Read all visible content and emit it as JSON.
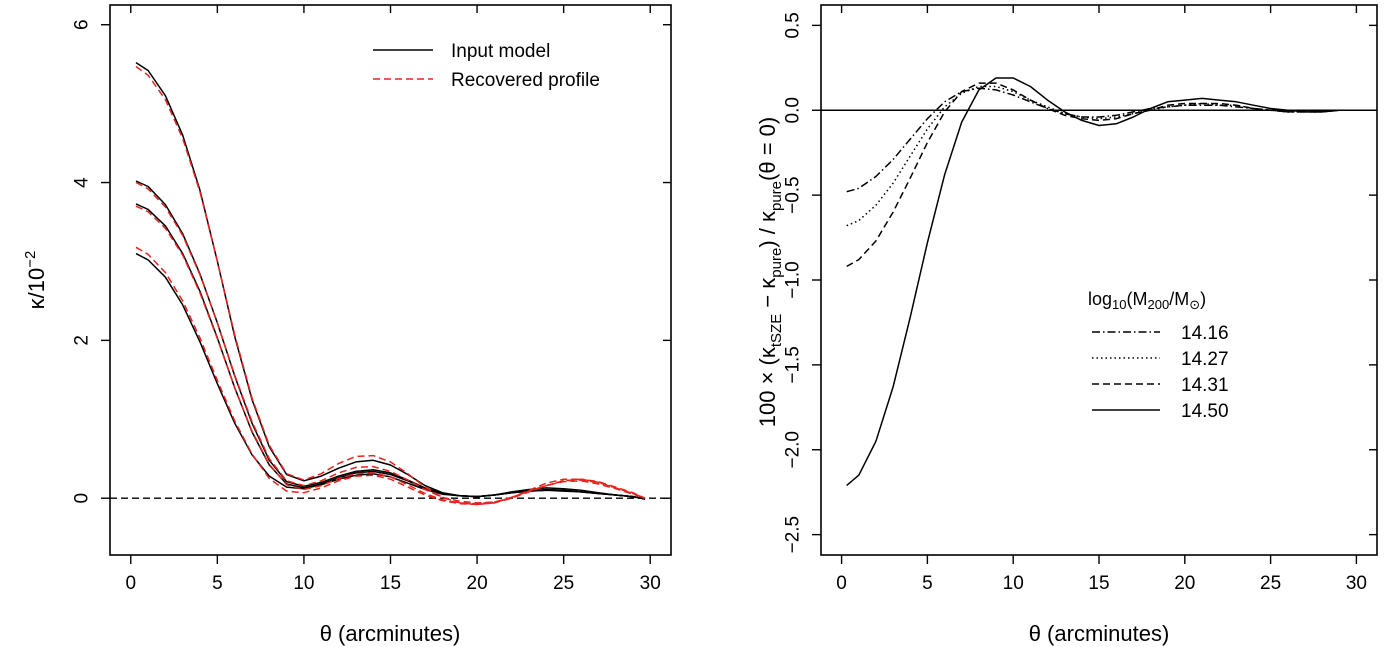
{
  "chart_data": [
    {
      "type": "line",
      "xlabel": "θ (arcminutes)",
      "ylabel": {
        "base": "κ/10",
        "sup": "−2"
      },
      "xlim": [
        -1.2,
        31.2
      ],
      "ylim": [
        -0.72,
        6.25
      ],
      "xticks": [
        0,
        5,
        10,
        15,
        20,
        25,
        30
      ],
      "xtick_labels": [
        "0",
        "5",
        "10",
        "15",
        "20",
        "25",
        "30"
      ],
      "yticks": [
        0,
        2,
        4,
        6
      ],
      "ytick_labels": [
        "0",
        "2",
        "4",
        "6"
      ],
      "grid": false,
      "legend_position": "top-right",
      "legend": [
        {
          "label": "Input model",
          "color": "#000000",
          "dash": "solid"
        },
        {
          "label": "Recovered profile",
          "color": "#e8231f",
          "dash": "dashed"
        }
      ],
      "reference_line": {
        "y": 0,
        "dash": "dashed",
        "color": "#000000"
      },
      "series": [
        {
          "group": "Input model",
          "color": "#000000",
          "dash": "solid",
          "x": [
            0.3,
            1,
            2,
            3,
            4,
            5,
            6,
            7,
            8,
            9,
            10,
            11,
            12,
            13,
            14,
            15,
            16,
            17,
            18,
            19,
            20,
            21,
            22,
            23,
            24,
            25,
            26,
            27,
            28,
            29,
            29.7
          ],
          "y": [
            5.52,
            5.42,
            5.1,
            4.6,
            3.9,
            3.0,
            2.05,
            1.25,
            0.65,
            0.3,
            0.22,
            0.28,
            0.38,
            0.46,
            0.48,
            0.42,
            0.3,
            0.16,
            0.07,
            0.03,
            0.02,
            0.04,
            0.08,
            0.11,
            0.13,
            0.12,
            0.1,
            0.07,
            0.04,
            0.02,
            -0.01
          ]
        },
        {
          "group": "Input model",
          "color": "#000000",
          "dash": "solid",
          "x": [
            0.3,
            1,
            2,
            3,
            4,
            5,
            6,
            7,
            8,
            9,
            10,
            11,
            12,
            13,
            14,
            15,
            16,
            17,
            18,
            19,
            20,
            21,
            22,
            23,
            24,
            25,
            26,
            27,
            28,
            29,
            29.7
          ],
          "y": [
            4.02,
            3.95,
            3.72,
            3.35,
            2.84,
            2.22,
            1.55,
            0.95,
            0.48,
            0.21,
            0.15,
            0.2,
            0.28,
            0.34,
            0.36,
            0.32,
            0.23,
            0.13,
            0.06,
            0.03,
            0.02,
            0.04,
            0.07,
            0.09,
            0.11,
            0.1,
            0.08,
            0.06,
            0.04,
            0.02,
            -0.01
          ]
        },
        {
          "group": "Input model",
          "color": "#000000",
          "dash": "solid",
          "x": [
            0.3,
            1,
            2,
            3,
            4,
            5,
            6,
            7,
            8,
            9,
            10,
            11,
            12,
            13,
            14,
            15,
            16,
            17,
            18,
            19,
            20,
            21,
            22,
            23,
            24,
            25,
            26,
            27,
            28,
            29,
            29.7
          ],
          "y": [
            3.73,
            3.66,
            3.45,
            3.1,
            2.62,
            2.03,
            1.4,
            0.84,
            0.42,
            0.18,
            0.13,
            0.18,
            0.26,
            0.32,
            0.34,
            0.3,
            0.22,
            0.12,
            0.06,
            0.03,
            0.02,
            0.04,
            0.07,
            0.09,
            0.1,
            0.1,
            0.08,
            0.06,
            0.04,
            0.02,
            -0.01
          ]
        },
        {
          "group": "Input model",
          "color": "#000000",
          "dash": "solid",
          "x": [
            0.3,
            1,
            2,
            3,
            4,
            5,
            6,
            7,
            8,
            9,
            10,
            11,
            12,
            13,
            14,
            15,
            16,
            17,
            18,
            19,
            20,
            21,
            22,
            23,
            24,
            25,
            26,
            27,
            28,
            29,
            29.7
          ],
          "y": [
            3.1,
            3.02,
            2.8,
            2.45,
            1.98,
            1.45,
            0.95,
            0.55,
            0.28,
            0.14,
            0.12,
            0.17,
            0.24,
            0.29,
            0.31,
            0.27,
            0.19,
            0.11,
            0.05,
            0.03,
            0.02,
            0.04,
            0.07,
            0.09,
            0.1,
            0.09,
            0.08,
            0.06,
            0.04,
            0.02,
            -0.01
          ]
        },
        {
          "group": "Recovered profile",
          "color": "#e8231f",
          "dash": "dashed",
          "x": [
            0.3,
            1,
            2,
            3,
            4,
            5,
            6,
            7,
            8,
            9,
            10,
            11,
            12,
            13,
            14,
            15,
            16,
            17,
            18,
            19,
            20,
            21,
            22,
            23,
            24,
            25,
            26,
            27,
            28,
            29,
            29.7
          ],
          "y": [
            5.47,
            5.36,
            5.05,
            4.56,
            3.88,
            3.0,
            2.07,
            1.27,
            0.67,
            0.31,
            0.23,
            0.31,
            0.44,
            0.53,
            0.54,
            0.46,
            0.31,
            0.14,
            0.01,
            -0.06,
            -0.08,
            -0.06,
            0.01,
            0.1,
            0.19,
            0.24,
            0.24,
            0.2,
            0.13,
            0.06,
            0.0
          ]
        },
        {
          "group": "Recovered profile",
          "color": "#e8231f",
          "dash": "dashed",
          "x": [
            0.3,
            1,
            2,
            3,
            4,
            5,
            6,
            7,
            8,
            9,
            10,
            11,
            12,
            13,
            14,
            15,
            16,
            17,
            18,
            19,
            20,
            21,
            22,
            23,
            24,
            25,
            26,
            27,
            28,
            29,
            29.7
          ],
          "y": [
            4.0,
            3.92,
            3.69,
            3.33,
            2.83,
            2.22,
            1.56,
            0.97,
            0.5,
            0.22,
            0.16,
            0.22,
            0.32,
            0.39,
            0.4,
            0.34,
            0.23,
            0.11,
            0.01,
            -0.04,
            -0.06,
            -0.05,
            0.01,
            0.09,
            0.16,
            0.21,
            0.22,
            0.18,
            0.12,
            0.05,
            0.0
          ]
        },
        {
          "group": "Recovered profile",
          "color": "#e8231f",
          "dash": "dashed",
          "x": [
            0.3,
            1,
            2,
            3,
            4,
            5,
            6,
            7,
            8,
            9,
            10,
            11,
            12,
            13,
            14,
            15,
            16,
            17,
            18,
            19,
            20,
            21,
            22,
            23,
            24,
            25,
            26,
            27,
            28,
            29,
            29.7
          ],
          "y": [
            3.7,
            3.63,
            3.42,
            3.08,
            2.6,
            2.02,
            1.4,
            0.85,
            0.43,
            0.17,
            0.11,
            0.16,
            0.25,
            0.31,
            0.32,
            0.27,
            0.17,
            0.06,
            -0.02,
            -0.06,
            -0.07,
            -0.05,
            0.01,
            0.09,
            0.16,
            0.22,
            0.23,
            0.2,
            0.13,
            0.06,
            0.0
          ]
        },
        {
          "group": "Recovered profile",
          "color": "#e8231f",
          "dash": "dashed",
          "x": [
            0.3,
            1,
            2,
            3,
            4,
            5,
            6,
            7,
            8,
            9,
            10,
            11,
            12,
            13,
            14,
            15,
            16,
            17,
            18,
            19,
            20,
            21,
            22,
            23,
            24,
            25,
            26,
            27,
            28,
            29,
            29.7
          ],
          "y": [
            3.18,
            3.09,
            2.86,
            2.5,
            2.03,
            1.49,
            0.98,
            0.56,
            0.25,
            0.09,
            0.07,
            0.13,
            0.22,
            0.28,
            0.29,
            0.24,
            0.14,
            0.04,
            -0.03,
            -0.07,
            -0.08,
            -0.06,
            0.0,
            0.08,
            0.16,
            0.22,
            0.24,
            0.21,
            0.14,
            0.07,
            0.0
          ]
        }
      ]
    },
    {
      "type": "line",
      "xlabel": "θ (arcminutes)",
      "ylabel": "100 × (κtSZE − κpure) / κpure(θ = 0)",
      "ylabel_parts": {
        "lead": "100 × (κ",
        "sub1": "tSZE",
        "mid": " − κ",
        "sub2": "pure",
        "mid2": ") / κ",
        "sub3": "pure",
        "tail": "(θ = 0)"
      },
      "xlim": [
        -1.2,
        31.2
      ],
      "ylim": [
        -2.62,
        0.62
      ],
      "xticks": [
        0,
        5,
        10,
        15,
        20,
        25,
        30
      ],
      "xtick_labels": [
        "0",
        "5",
        "10",
        "15",
        "20",
        "25",
        "30"
      ],
      "yticks": [
        -2.5,
        -2.0,
        -1.5,
        -1.0,
        -0.5,
        0.0,
        0.5
      ],
      "ytick_labels": [
        "−2.5",
        "−2.0",
        "−1.5",
        "−1.0",
        "−0.5",
        "0.0",
        "0.5"
      ],
      "grid": false,
      "legend_position": "right",
      "legend_title": {
        "lead": "log",
        "sub1": "10",
        "mid": "(M",
        "sub2": "200",
        "mid2": "/M",
        "sub3": "⊙",
        "tail": ")"
      },
      "reference_line": {
        "y": 0,
        "dash": "solid",
        "color": "#000000"
      },
      "series": [
        {
          "name": "14.16",
          "color": "#000000",
          "dash": "dashdot",
          "x": [
            0.3,
            1,
            2,
            3,
            4,
            5,
            6,
            7,
            8,
            9,
            10,
            11,
            12,
            13,
            14,
            15,
            16,
            17,
            18,
            19,
            20,
            21,
            22,
            23,
            24,
            25,
            26,
            27,
            28,
            29,
            29.7
          ],
          "y": [
            -0.48,
            -0.46,
            -0.39,
            -0.29,
            -0.17,
            -0.05,
            0.05,
            0.11,
            0.13,
            0.12,
            0.09,
            0.05,
            0.01,
            -0.02,
            -0.04,
            -0.04,
            -0.03,
            -0.01,
            0.01,
            0.02,
            0.03,
            0.03,
            0.03,
            0.02,
            0.01,
            0.0,
            -0.01,
            -0.01,
            -0.01,
            0.0,
            0.0
          ]
        },
        {
          "name": "14.27",
          "color": "#000000",
          "dash": "dotted",
          "x": [
            0.3,
            1,
            2,
            3,
            4,
            5,
            6,
            7,
            8,
            9,
            10,
            11,
            12,
            13,
            14,
            15,
            16,
            17,
            18,
            19,
            20,
            21,
            22,
            23,
            24,
            25,
            26,
            27,
            28,
            29,
            29.7
          ],
          "y": [
            -0.68,
            -0.65,
            -0.56,
            -0.43,
            -0.27,
            -0.11,
            0.02,
            0.1,
            0.14,
            0.14,
            0.11,
            0.06,
            0.02,
            -0.02,
            -0.04,
            -0.05,
            -0.04,
            -0.02,
            0.0,
            0.02,
            0.03,
            0.04,
            0.03,
            0.03,
            0.01,
            0.0,
            -0.01,
            -0.01,
            -0.01,
            0.0,
            0.0
          ]
        },
        {
          "name": "14.31",
          "color": "#000000",
          "dash": "dashed",
          "x": [
            0.3,
            1,
            2,
            3,
            4,
            5,
            6,
            7,
            8,
            9,
            10,
            11,
            12,
            13,
            14,
            15,
            16,
            17,
            18,
            19,
            20,
            21,
            22,
            23,
            24,
            25,
            26,
            27,
            28,
            29,
            29.7
          ],
          "y": [
            -0.92,
            -0.88,
            -0.77,
            -0.6,
            -0.4,
            -0.19,
            -0.01,
            0.11,
            0.16,
            0.16,
            0.12,
            0.06,
            0.01,
            -0.03,
            -0.05,
            -0.06,
            -0.05,
            -0.02,
            0.0,
            0.03,
            0.04,
            0.04,
            0.04,
            0.03,
            0.01,
            0.0,
            -0.01,
            -0.01,
            -0.01,
            0.0,
            0.0
          ]
        },
        {
          "name": "14.50",
          "color": "#000000",
          "dash": "solid",
          "x": [
            0.3,
            1,
            2,
            3,
            4,
            5,
            6,
            7,
            8,
            9,
            10,
            11,
            12,
            13,
            14,
            15,
            16,
            17,
            18,
            19,
            20,
            21,
            22,
            23,
            24,
            25,
            26,
            27,
            28,
            29,
            29.7
          ],
          "y": [
            -2.21,
            -2.15,
            -1.95,
            -1.63,
            -1.22,
            -0.78,
            -0.38,
            -0.07,
            0.12,
            0.19,
            0.19,
            0.14,
            0.06,
            -0.01,
            -0.06,
            -0.09,
            -0.08,
            -0.04,
            0.01,
            0.05,
            0.06,
            0.07,
            0.06,
            0.05,
            0.03,
            0.01,
            0.0,
            -0.01,
            -0.01,
            0.0,
            0.0
          ]
        }
      ]
    }
  ]
}
